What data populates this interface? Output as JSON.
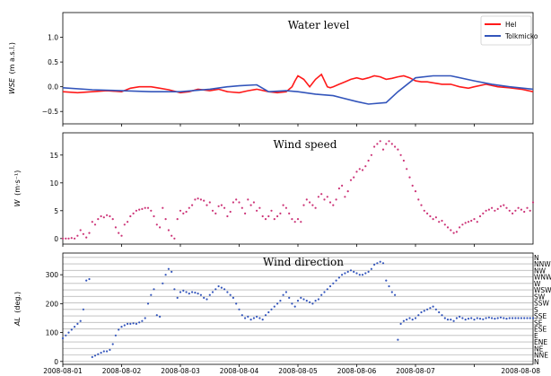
{
  "chart_data": [
    {
      "type": "line",
      "title": "Water level",
      "ylabel": "WSE (m a.s.l.)",
      "ylabel_parts": {
        "main": "WSE",
        "unit": "(m a.s.l.)"
      },
      "ylim": [
        -0.75,
        1.5
      ],
      "yticks": [
        "1.0",
        "0.5",
        "0.0",
        "−0.5"
      ],
      "ytick_values": [
        1.0,
        0.5,
        0.0,
        -0.5
      ],
      "xlim": [
        0,
        8
      ],
      "grid": false,
      "legend_position": "top-right",
      "series": [
        {
          "name": "Hel",
          "color": "#ff1a1a",
          "x": [
            0,
            0.25,
            0.5,
            0.75,
            1.0,
            1.15,
            1.3,
            1.5,
            1.65,
            1.8,
            2.0,
            2.15,
            2.3,
            2.5,
            2.65,
            2.8,
            3.0,
            3.15,
            3.3,
            3.5,
            3.65,
            3.8,
            3.9,
            3.95,
            4.0,
            4.1,
            4.2,
            4.3,
            4.4,
            4.5,
            4.55,
            4.6,
            4.7,
            4.8,
            4.9,
            5.0,
            5.1,
            5.2,
            5.3,
            5.4,
            5.5,
            5.6,
            5.7,
            5.8,
            5.9,
            6.0,
            6.1,
            6.2,
            6.3,
            6.45,
            6.6,
            6.75,
            6.9,
            7.0,
            7.2,
            7.4,
            7.6,
            7.8,
            8.0
          ],
          "y": [
            -0.1,
            -0.12,
            -0.1,
            -0.08,
            -0.1,
            -0.03,
            0.0,
            0.0,
            -0.03,
            -0.06,
            -0.12,
            -0.1,
            -0.05,
            -0.08,
            -0.05,
            -0.1,
            -0.12,
            -0.08,
            -0.05,
            -0.1,
            -0.12,
            -0.1,
            0.0,
            0.12,
            0.22,
            0.15,
            0.0,
            0.15,
            0.25,
            0.0,
            -0.02,
            0.0,
            0.05,
            0.1,
            0.15,
            0.18,
            0.15,
            0.18,
            0.22,
            0.2,
            0.15,
            0.17,
            0.2,
            0.22,
            0.18,
            0.12,
            0.1,
            0.1,
            0.08,
            0.05,
            0.05,
            0.0,
            -0.03,
            0.0,
            0.05,
            0.0,
            -0.02,
            -0.05,
            -0.1
          ]
        },
        {
          "name": "Tolkmicko",
          "color": "#3355bb",
          "x": [
            0,
            0.5,
            1.0,
            1.5,
            2.0,
            2.5,
            2.8,
            3.0,
            3.3,
            3.5,
            3.8,
            4.0,
            4.3,
            4.6,
            5.0,
            5.2,
            5.5,
            5.7,
            6.0,
            6.3,
            6.6,
            7.0,
            7.3,
            7.6,
            8.0
          ],
          "y": [
            -0.02,
            -0.06,
            -0.08,
            -0.1,
            -0.1,
            -0.05,
            0.0,
            0.02,
            0.04,
            -0.1,
            -0.08,
            -0.1,
            -0.15,
            -0.18,
            -0.3,
            -0.35,
            -0.32,
            -0.1,
            0.18,
            0.22,
            0.22,
            0.12,
            0.05,
            0.0,
            -0.05
          ]
        }
      ]
    },
    {
      "type": "scatter",
      "title": "Wind speed",
      "ylabel": "W (m·s⁻¹)",
      "ylabel_parts": {
        "main": "W",
        "unit": "(m·s⁻¹)"
      },
      "ylim": [
        -1,
        19
      ],
      "yticks": [
        "15",
        "10",
        "5",
        "0"
      ],
      "ytick_values": [
        15,
        10,
        5,
        0
      ],
      "xlim": [
        0,
        8
      ],
      "grid": false,
      "series": [
        {
          "name": "",
          "color": "#cc3377",
          "x": [
            0.0,
            0.05,
            0.1,
            0.15,
            0.2,
            0.25,
            0.3,
            0.35,
            0.4,
            0.45,
            0.5,
            0.55,
            0.6,
            0.65,
            0.7,
            0.75,
            0.8,
            0.85,
            0.9,
            0.95,
            1.0,
            1.05,
            1.1,
            1.15,
            1.2,
            1.25,
            1.3,
            1.35,
            1.4,
            1.45,
            1.5,
            1.55,
            1.6,
            1.65,
            1.7,
            1.75,
            1.8,
            1.85,
            1.9,
            1.95,
            2.0,
            2.05,
            2.1,
            2.15,
            2.2,
            2.25,
            2.3,
            2.35,
            2.4,
            2.45,
            2.5,
            2.55,
            2.6,
            2.65,
            2.7,
            2.75,
            2.8,
            2.85,
            2.9,
            2.95,
            3.0,
            3.05,
            3.1,
            3.15,
            3.2,
            3.25,
            3.3,
            3.35,
            3.4,
            3.45,
            3.5,
            3.55,
            3.6,
            3.65,
            3.7,
            3.75,
            3.8,
            3.85,
            3.9,
            3.95,
            4.0,
            4.05,
            4.1,
            4.15,
            4.2,
            4.25,
            4.3,
            4.35,
            4.4,
            4.45,
            4.5,
            4.55,
            4.6,
            4.65,
            4.7,
            4.75,
            4.8,
            4.85,
            4.9,
            4.95,
            5.0,
            5.05,
            5.1,
            5.15,
            5.2,
            5.25,
            5.3,
            5.35,
            5.4,
            5.45,
            5.5,
            5.55,
            5.6,
            5.65,
            5.7,
            5.75,
            5.8,
            5.85,
            5.9,
            5.95,
            6.0,
            6.05,
            6.1,
            6.15,
            6.2,
            6.25,
            6.3,
            6.35,
            6.4,
            6.45,
            6.5,
            6.55,
            6.6,
            6.65,
            6.7,
            6.75,
            6.8,
            6.85,
            6.9,
            6.95,
            7.0,
            7.05,
            7.1,
            7.15,
            7.2,
            7.25,
            7.3,
            7.35,
            7.4,
            7.45,
            7.5,
            7.55,
            7.6,
            7.65,
            7.7,
            7.75,
            7.8,
            7.85,
            7.9,
            7.95,
            8.0
          ],
          "y": [
            0.0,
            0.0,
            0.0,
            0.1,
            0.0,
            0.5,
            1.5,
            0.8,
            0.2,
            1.0,
            3.0,
            2.5,
            3.5,
            4.0,
            3.8,
            4.2,
            4.0,
            3.5,
            2.0,
            1.0,
            0.5,
            2.5,
            3.0,
            4.0,
            4.5,
            5.0,
            5.2,
            5.3,
            5.5,
            5.5,
            5.0,
            4.0,
            2.5,
            2.0,
            5.5,
            3.5,
            1.5,
            0.5,
            0.0,
            3.5,
            5.0,
            4.5,
            4.8,
            5.5,
            6.0,
            7.0,
            7.2,
            7.0,
            6.8,
            6.0,
            6.5,
            5.0,
            4.5,
            5.8,
            6.0,
            5.5,
            4.0,
            4.8,
            6.5,
            7.0,
            6.5,
            5.5,
            4.5,
            7.0,
            6.0,
            6.5,
            5.0,
            5.5,
            4.0,
            3.5,
            4.0,
            5.0,
            3.5,
            4.0,
            4.5,
            6.0,
            5.5,
            4.5,
            3.5,
            3.0,
            3.5,
            3.0,
            6.0,
            7.0,
            6.5,
            6.0,
            5.5,
            7.5,
            8.0,
            7.0,
            7.5,
            6.5,
            6.0,
            7.0,
            9.0,
            9.5,
            7.5,
            8.5,
            10.5,
            11.0,
            12.0,
            12.5,
            12.3,
            13.0,
            14.0,
            15.0,
            16.5,
            17.0,
            17.5,
            16.0,
            17.0,
            17.5,
            17.0,
            16.5,
            16.0,
            15.0,
            14.0,
            12.5,
            11.0,
            9.5,
            8.5,
            7.0,
            6.0,
            5.0,
            4.5,
            4.0,
            3.5,
            3.8,
            3.0,
            3.2,
            2.5,
            2.0,
            1.5,
            1.0,
            1.2,
            2.0,
            2.5,
            2.8,
            3.0,
            3.2,
            3.5,
            3.0,
            4.0,
            4.5,
            5.0,
            5.2,
            5.5,
            5.0,
            5.3,
            5.8,
            6.0,
            5.5,
            5.0,
            4.5,
            5.0,
            5.5,
            5.2,
            4.8,
            5.5,
            5.0,
            6.5
          ]
        }
      ]
    },
    {
      "type": "scatter",
      "title": "Wind direction",
      "ylabel": "AL (deg.)",
      "ylabel_parts": {
        "main": "AL",
        "unit": "(deg.)"
      },
      "ylim": [
        -10,
        375
      ],
      "yticks": [
        "300",
        "200",
        "100",
        "0"
      ],
      "ytick_values": [
        300,
        200,
        100,
        0
      ],
      "xlim": [
        0,
        8
      ],
      "x_tick_labels": [
        "2008-08-01",
        "2008-08-02",
        "2008-08-03",
        "2008-08-04",
        "2008-08-05",
        "2008-08-06",
        "2008-08-07",
        "2008-08-08"
      ],
      "grid": true,
      "compass_labels": [
        "N",
        "NNW",
        "NW",
        "WNW",
        "W",
        "WSW",
        "SW",
        "SSW",
        "S",
        "SSE",
        "SE",
        "ESE",
        "E",
        "ENE",
        "NE",
        "NNE",
        "N"
      ],
      "compass_degrees": [
        360,
        337.5,
        315,
        292.5,
        270,
        247.5,
        225,
        202.5,
        180,
        157.5,
        135,
        112.5,
        90,
        67.5,
        45,
        22.5,
        0
      ],
      "series": [
        {
          "name": "",
          "color": "#3355bb",
          "x": [
            0.0,
            0.05,
            0.1,
            0.15,
            0.2,
            0.25,
            0.3,
            0.35,
            0.4,
            0.45,
            0.5,
            0.55,
            0.6,
            0.65,
            0.7,
            0.75,
            0.8,
            0.85,
            0.9,
            0.95,
            1.0,
            1.05,
            1.1,
            1.15,
            1.2,
            1.25,
            1.3,
            1.35,
            1.4,
            1.45,
            1.5,
            1.55,
            1.6,
            1.65,
            1.7,
            1.75,
            1.8,
            1.85,
            1.9,
            1.95,
            2.0,
            2.05,
            2.1,
            2.15,
            2.2,
            2.25,
            2.3,
            2.35,
            2.4,
            2.45,
            2.5,
            2.55,
            2.6,
            2.65,
            2.7,
            2.75,
            2.8,
            2.85,
            2.9,
            2.95,
            3.0,
            3.05,
            3.1,
            3.15,
            3.2,
            3.25,
            3.3,
            3.35,
            3.4,
            3.45,
            3.5,
            3.55,
            3.6,
            3.65,
            3.7,
            3.75,
            3.8,
            3.85,
            3.9,
            3.95,
            4.0,
            4.05,
            4.1,
            4.15,
            4.2,
            4.25,
            4.3,
            4.35,
            4.4,
            4.45,
            4.5,
            4.55,
            4.6,
            4.65,
            4.7,
            4.75,
            4.8,
            4.85,
            4.9,
            4.95,
            5.0,
            5.05,
            5.1,
            5.15,
            5.2,
            5.25,
            5.3,
            5.35,
            5.4,
            5.45,
            5.5,
            5.55,
            5.6,
            5.65,
            5.7,
            5.75,
            5.8,
            5.85,
            5.9,
            5.95,
            6.0,
            6.05,
            6.1,
            6.15,
            6.2,
            6.25,
            6.3,
            6.35,
            6.4,
            6.45,
            6.5,
            6.55,
            6.6,
            6.65,
            6.7,
            6.75,
            6.8,
            6.85,
            6.9,
            6.95,
            7.0,
            7.05,
            7.1,
            7.15,
            7.2,
            7.25,
            7.3,
            7.35,
            7.4,
            7.45,
            7.5,
            7.55,
            7.6,
            7.65,
            7.7,
            7.75,
            7.8,
            7.85,
            7.9,
            7.95,
            8.0
          ],
          "y": [
            80,
            90,
            100,
            110,
            120,
            130,
            140,
            180,
            280,
            285,
            15,
            20,
            25,
            30,
            35,
            35,
            40,
            60,
            90,
            110,
            120,
            125,
            130,
            130,
            132,
            130,
            135,
            140,
            150,
            200,
            230,
            250,
            160,
            155,
            270,
            300,
            320,
            310,
            250,
            220,
            240,
            245,
            240,
            235,
            240,
            238,
            235,
            230,
            220,
            215,
            230,
            240,
            250,
            260,
            255,
            250,
            240,
            230,
            220,
            200,
            180,
            160,
            150,
            155,
            145,
            150,
            155,
            150,
            145,
            160,
            170,
            180,
            190,
            200,
            210,
            230,
            240,
            220,
            200,
            190,
            210,
            220,
            215,
            210,
            205,
            200,
            210,
            215,
            230,
            240,
            250,
            260,
            270,
            280,
            290,
            300,
            305,
            310,
            315,
            310,
            305,
            300,
            300,
            305,
            310,
            320,
            335,
            340,
            345,
            340,
            280,
            260,
            240,
            230,
            75,
            130,
            140,
            145,
            150,
            145,
            150,
            160,
            170,
            175,
            180,
            185,
            190,
            180,
            170,
            160,
            150,
            145,
            145,
            140,
            150,
            155,
            150,
            145,
            148,
            150,
            145,
            150,
            148,
            146,
            150,
            152,
            150,
            148,
            150,
            152,
            150,
            148,
            150,
            150,
            150,
            150,
            150,
            150,
            150,
            150,
            150
          ]
        }
      ]
    }
  ]
}
